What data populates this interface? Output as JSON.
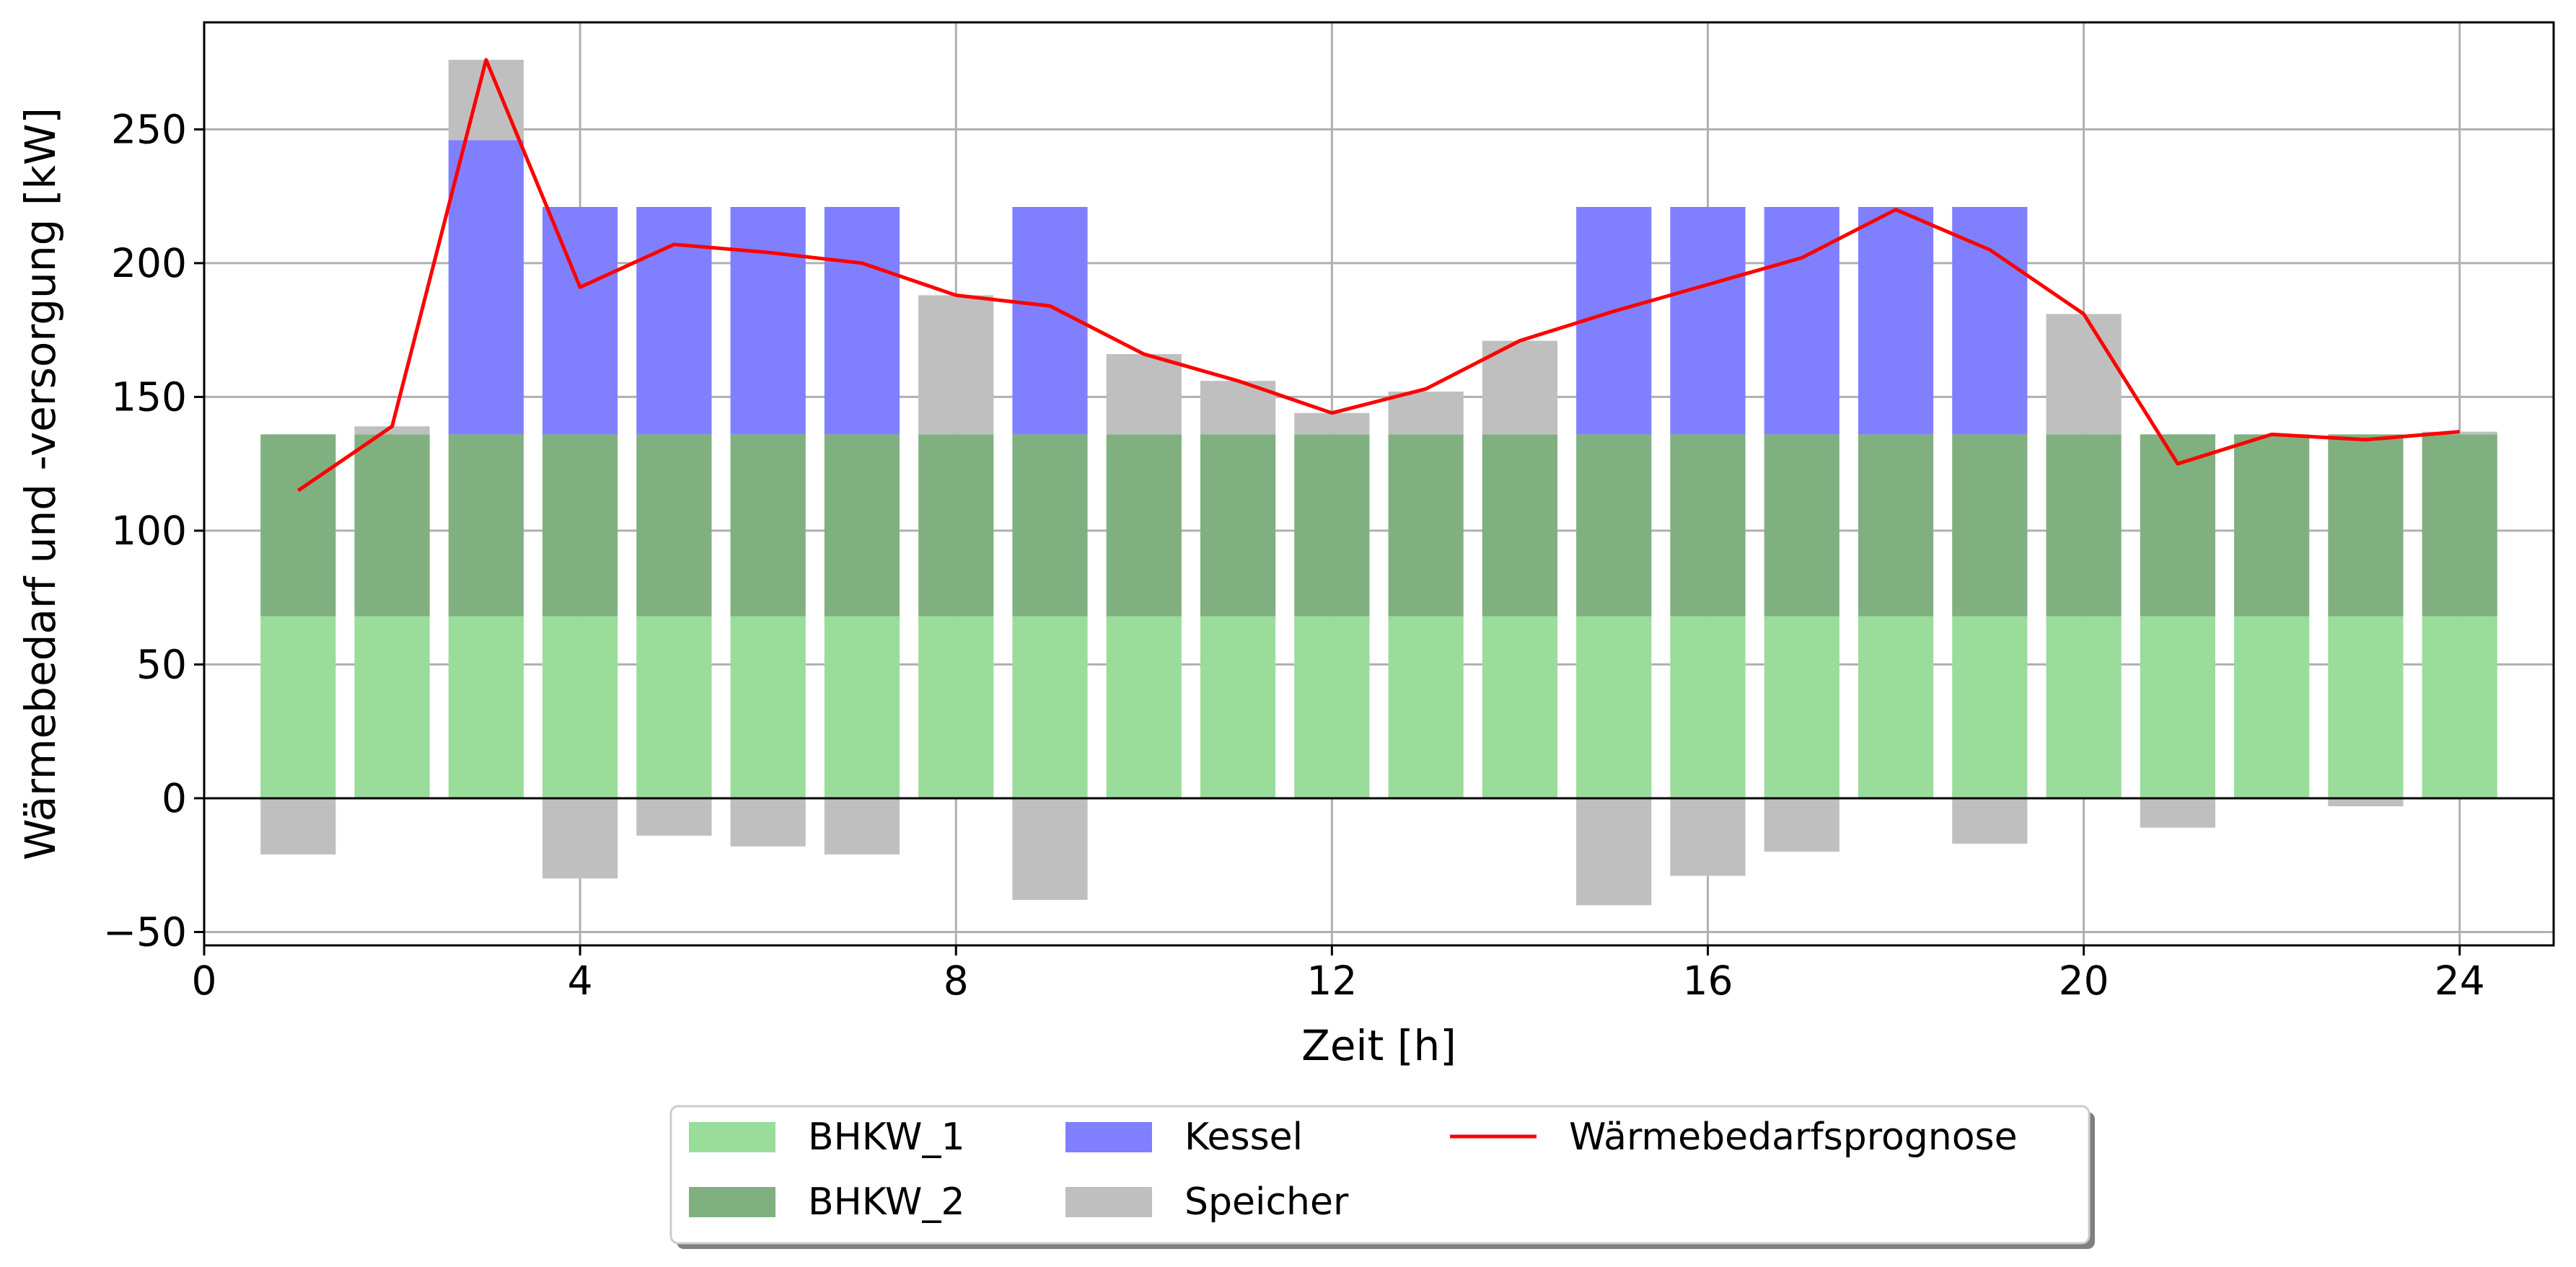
{
  "chart_data": {
    "type": "bar",
    "stacked": true,
    "xlabel": "Zeit [h]",
    "ylabel": "Wärmebedarf und -versorgung [kW]",
    "xlim": [
      0,
      25
    ],
    "ylim": [
      -55,
      290
    ],
    "xticks": [
      0,
      4,
      8,
      12,
      16,
      20,
      24
    ],
    "yticks": [
      -50,
      0,
      50,
      100,
      150,
      200,
      250
    ],
    "grid": true,
    "legend_position": "bottom-center",
    "x": [
      1,
      2,
      3,
      4,
      5,
      6,
      7,
      8,
      9,
      10,
      11,
      12,
      13,
      14,
      15,
      16,
      17,
      18,
      19,
      20,
      21,
      22,
      23,
      24
    ],
    "series": [
      {
        "name": "BHKW_1",
        "kind": "bar",
        "color": "#9adc9a",
        "values": [
          68,
          68,
          68,
          68,
          68,
          68,
          68,
          68,
          68,
          68,
          68,
          68,
          68,
          68,
          68,
          68,
          68,
          68,
          68,
          68,
          68,
          68,
          68,
          68
        ]
      },
      {
        "name": "BHKW_2",
        "kind": "bar",
        "color": "#80b080",
        "values": [
          68,
          68,
          68,
          68,
          68,
          68,
          68,
          68,
          68,
          68,
          68,
          68,
          68,
          68,
          68,
          68,
          68,
          68,
          68,
          68,
          68,
          68,
          68,
          68
        ]
      },
      {
        "name": "Kessel",
        "kind": "bar",
        "color": "#8080ff",
        "values": [
          0,
          0,
          110,
          85,
          85,
          85,
          85,
          0,
          85,
          0,
          0,
          0,
          0,
          0,
          85,
          85,
          85,
          85,
          85,
          0,
          0,
          0,
          0,
          0
        ]
      },
      {
        "name": "Speicher",
        "kind": "bar",
        "color": "#bfbfbf",
        "values": [
          -21,
          3,
          30,
          -30,
          -14,
          -18,
          -21,
          52,
          -38,
          30,
          20,
          8,
          16,
          35,
          -40,
          -29,
          -20,
          0,
          -17,
          45,
          -11,
          0,
          -3,
          1
        ]
      },
      {
        "name": "Wärmebedarfsprognose",
        "kind": "line",
        "color": "#ff0000",
        "values": [
          115,
          139,
          276,
          191,
          207,
          204,
          200,
          188,
          184,
          166,
          156,
          144,
          153,
          171,
          182,
          192,
          202,
          220,
          205,
          181,
          125,
          136,
          134,
          137
        ]
      }
    ]
  }
}
